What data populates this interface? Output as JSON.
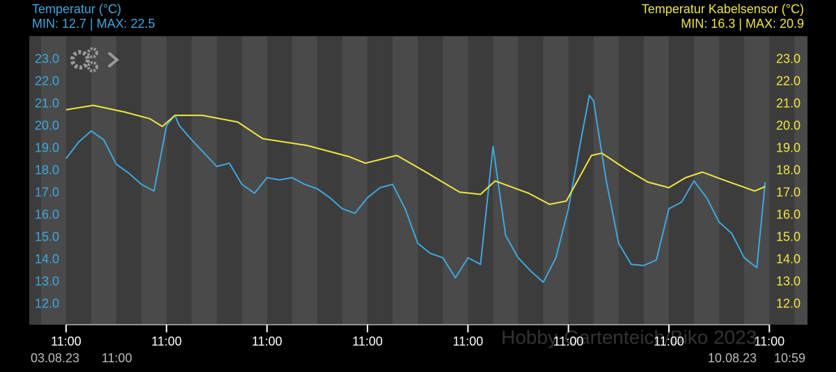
{
  "chart_data": {
    "type": "line",
    "title": "Temperatur (°C)",
    "subtitle": "MIN: 12.7 | MAX: 22.5",
    "title_right": "Temperatur Kabelsensor (°C)",
    "subtitle_right": "MIN: 16.3 | MAX: 20.9",
    "start_date": "03.08.23",
    "start_time": "11:00",
    "end_date": "10.08.23",
    "end_time": "10:59",
    "watermark": "Hobby-Gartenteich/Biko 2023",
    "xlim": [
      -8.8,
      177.1
    ],
    "xticks": [
      {
        "value": 0,
        "label": "11:00"
      },
      {
        "value": 24,
        "label": "11:00"
      },
      {
        "value": 48,
        "label": "11:00"
      },
      {
        "value": 72,
        "label": "11:00"
      },
      {
        "value": 96,
        "label": "11:00"
      },
      {
        "value": 120,
        "label": "11:00"
      },
      {
        "value": 144,
        "label": "11:00"
      },
      {
        "value": 168,
        "label": "11:00"
      }
    ],
    "ylim": [
      11.09,
      24.06
    ],
    "yticks": [
      {
        "value": 12,
        "label": "12.0"
      },
      {
        "value": 13,
        "label": "13.0"
      },
      {
        "value": 14,
        "label": "14.0"
      },
      {
        "value": 15,
        "label": "15.0"
      },
      {
        "value": 16,
        "label": "16.0"
      },
      {
        "value": 17,
        "label": "17.0"
      },
      {
        "value": 18,
        "label": "18.0"
      },
      {
        "value": 19,
        "label": "19.0"
      },
      {
        "value": 20,
        "label": "20.0"
      },
      {
        "value": 21,
        "label": "21.0"
      },
      {
        "value": 22,
        "label": "22.0"
      },
      {
        "value": 23,
        "label": "23.0"
      }
    ],
    "y2lim": [
      11.09,
      24.06
    ],
    "y2ticks": [
      {
        "value": 12,
        "label": "12.0"
      },
      {
        "value": 13,
        "label": "13.0"
      },
      {
        "value": 14,
        "label": "14.0"
      },
      {
        "value": 15,
        "label": "15.0"
      },
      {
        "value": 16,
        "label": "16.0"
      },
      {
        "value": 17,
        "label": "17.0"
      },
      {
        "value": 18,
        "label": "18.0"
      },
      {
        "value": 19,
        "label": "19.0"
      },
      {
        "value": 20,
        "label": "20.0"
      },
      {
        "value": 21,
        "label": "21.0"
      },
      {
        "value": 22,
        "label": "22.0"
      },
      {
        "value": 23,
        "label": "23.0"
      }
    ],
    "series": [
      {
        "name": "Temperatur (°C)",
        "color": "#3ea8df",
        "x": [
          0,
          3,
          6,
          9,
          12,
          15,
          18,
          21,
          24,
          26,
          27,
          30,
          33,
          36,
          39,
          42,
          45,
          48,
          51,
          54,
          57,
          60,
          63,
          66,
          69,
          72,
          75,
          78,
          81,
          84,
          87,
          90,
          93,
          96,
          99,
          102,
          105,
          108,
          111,
          114,
          117,
          120,
          123,
          125,
          126,
          129,
          132,
          135,
          138,
          141,
          144,
          147,
          150,
          153,
          156,
          159,
          162,
          165,
          167
        ],
        "values": [
          18.56,
          19.3,
          19.8,
          19.4,
          18.3,
          17.9,
          17.4,
          17.1,
          20.05,
          20.5,
          20.05,
          19.4,
          18.8,
          18.2,
          18.35,
          17.4,
          17.0,
          17.7,
          17.6,
          17.7,
          17.4,
          17.2,
          16.8,
          16.3,
          16.1,
          16.8,
          17.25,
          17.4,
          16.3,
          14.75,
          14.3,
          14.1,
          13.2,
          14.1,
          13.8,
          19.1,
          15.1,
          14.1,
          13.5,
          13.0,
          14.1,
          16.3,
          19.4,
          21.4,
          21.15,
          17.6,
          14.75,
          13.8,
          13.75,
          14.0,
          16.3,
          16.6,
          17.55,
          16.8,
          15.7,
          15.2,
          14.1,
          13.65,
          17.5
        ]
      },
      {
        "name": "Temperatur Kabelsensor (°C)",
        "color": "#f0e640",
        "axis": "y2",
        "x": [
          0,
          6.5,
          14,
          20,
          23,
          26,
          32.5,
          41,
          47,
          57.5,
          67.5,
          71.5,
          79,
          85.5,
          94,
          99,
          102.5,
          110.5,
          115.5,
          119.5,
          125.5,
          128,
          134,
          139,
          144,
          148,
          152,
          157,
          164.5,
          167
        ],
        "values": [
          20.75,
          20.95,
          20.65,
          20.35,
          20.0,
          20.5,
          20.5,
          20.2,
          19.45,
          19.15,
          18.65,
          18.35,
          18.7,
          18.0,
          17.05,
          16.95,
          17.55,
          17.0,
          16.5,
          16.65,
          18.7,
          18.8,
          18.05,
          17.5,
          17.25,
          17.7,
          17.95,
          17.6,
          17.1,
          17.3
        ]
      }
    ]
  }
}
